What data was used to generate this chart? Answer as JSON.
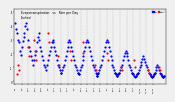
{
  "title": "Evapotranspiration   vs   Rain per Day",
  "subtitle": "(Inches)",
  "background_color": "#f0f0f0",
  "et_color": "#0000ff",
  "rain_color": "#ff0000",
  "black_color": "#000000",
  "ylim": [
    -0.02,
    0.52
  ],
  "num_days": 160,
  "vline_color": "#aaaaaa",
  "vline_style": "--",
  "legend_label_et": "ET",
  "legend_label_rain": "Rain",
  "dot_size": 2.5,
  "et_data": [
    0.42,
    0.38,
    0.35,
    0.3,
    0.28,
    0.22,
    0.19,
    0.25,
    0.29,
    0.32,
    0.35,
    0.4,
    0.42,
    0.38,
    0.3,
    0.25,
    0.22,
    0.18,
    0.15,
    0.12,
    0.15,
    0.19,
    0.22,
    0.28,
    0.32,
    0.35,
    0.3,
    0.25,
    0.22,
    0.18,
    0.15,
    0.12,
    0.1,
    0.08,
    0.12,
    0.15,
    0.19,
    0.22,
    0.25,
    0.28,
    0.3,
    0.28,
    0.25,
    0.22,
    0.19,
    0.15,
    0.12,
    0.1,
    0.08,
    0.06,
    0.08,
    0.1,
    0.12,
    0.15,
    0.18,
    0.22,
    0.25,
    0.28,
    0.3,
    0.28,
    0.25,
    0.22,
    0.18,
    0.15,
    0.12,
    0.1,
    0.08,
    0.06,
    0.05,
    0.08,
    0.1,
    0.12,
    0.15,
    0.18,
    0.22,
    0.25,
    0.28,
    0.3,
    0.28,
    0.25,
    0.22,
    0.18,
    0.15,
    0.12,
    0.1,
    0.08,
    0.06,
    0.05,
    0.04,
    0.06,
    0.08,
    0.1,
    0.12,
    0.15,
    0.18,
    0.22,
    0.25,
    0.28,
    0.3,
    0.28,
    0.25,
    0.22,
    0.18,
    0.15,
    0.12,
    0.1,
    0.08,
    0.06,
    0.05,
    0.04,
    0.05,
    0.06,
    0.08,
    0.1,
    0.12,
    0.15,
    0.18,
    0.2,
    0.22,
    0.2,
    0.18,
    0.15,
    0.12,
    0.1,
    0.08,
    0.06,
    0.05,
    0.04,
    0.03,
    0.04,
    0.05,
    0.06,
    0.08,
    0.1,
    0.12,
    0.14,
    0.16,
    0.18,
    0.16,
    0.14,
    0.12,
    0.1,
    0.08,
    0.06,
    0.05,
    0.04,
    0.03,
    0.04,
    0.05,
    0.06,
    0.08,
    0.1,
    0.12,
    0.1,
    0.08,
    0.06,
    0.05,
    0.04,
    0.03,
    0.04
  ],
  "rain_data": [
    0.0,
    0.0,
    0.05,
    0.12,
    0.08,
    0.0,
    0.0,
    0.0,
    0.0,
    0.0,
    0.0,
    0.0,
    0.0,
    0.0,
    0.25,
    0.18,
    0.0,
    0.0,
    0.0,
    0.0,
    0.3,
    0.22,
    0.15,
    0.0,
    0.0,
    0.0,
    0.0,
    0.0,
    0.0,
    0.0,
    0.0,
    0.0,
    0.0,
    0.0,
    0.0,
    0.35,
    0.28,
    0.0,
    0.0,
    0.0,
    0.0,
    0.0,
    0.0,
    0.0,
    0.0,
    0.0,
    0.18,
    0.12,
    0.0,
    0.0,
    0.0,
    0.0,
    0.0,
    0.0,
    0.0,
    0.0,
    0.0,
    0.0,
    0.0,
    0.22,
    0.15,
    0.0,
    0.0,
    0.0,
    0.0,
    0.0,
    0.0,
    0.0,
    0.0,
    0.0,
    0.0,
    0.0,
    0.28,
    0.2,
    0.0,
    0.0,
    0.0,
    0.0,
    0.0,
    0.0,
    0.0,
    0.0,
    0.0,
    0.0,
    0.0,
    0.12,
    0.08,
    0.0,
    0.0,
    0.0,
    0.0,
    0.0,
    0.0,
    0.0,
    0.0,
    0.0,
    0.0,
    0.0,
    0.2,
    0.15,
    0.0,
    0.0,
    0.0,
    0.0,
    0.0,
    0.0,
    0.0,
    0.0,
    0.0,
    0.0,
    0.0,
    0.0,
    0.0,
    0.1,
    0.08,
    0.0,
    0.0,
    0.0,
    0.0,
    0.0,
    0.0,
    0.0,
    0.0,
    0.0,
    0.0,
    0.0,
    0.0,
    0.15,
    0.1,
    0.0,
    0.0,
    0.0,
    0.0,
    0.0,
    0.0,
    0.0,
    0.0,
    0.0,
    0.0,
    0.0,
    0.0,
    0.0,
    0.08,
    0.06,
    0.0,
    0.0,
    0.0,
    0.0,
    0.0,
    0.0,
    0.0,
    0.0,
    0.0,
    0.0,
    0.1,
    0.08,
    0.0,
    0.0,
    0.0,
    0.0
  ],
  "x_tick_positions": [
    0,
    7,
    14,
    21,
    28,
    35,
    42,
    49,
    56,
    63,
    70,
    77,
    84,
    91,
    98,
    105,
    112,
    119,
    126,
    133,
    140,
    147
  ],
  "x_tick_labels": [
    "6/1",
    "6/8",
    "6/15",
    "6/22",
    "6/29",
    "7/6",
    "7/13",
    "7/20",
    "7/27",
    "8/3",
    "8/10",
    "8/17",
    "8/24",
    "8/31",
    "9/7",
    "9/14",
    "9/21",
    "9/28",
    "10/5",
    "10/12",
    "10/19",
    "10/26"
  ],
  "vline_positions": [
    7,
    14,
    21,
    28,
    35,
    42,
    49,
    56,
    63,
    70,
    77,
    84,
    91,
    98,
    105,
    112,
    119,
    126,
    133,
    140,
    147
  ],
  "y_tick_positions": [
    0.0,
    0.1,
    0.2,
    0.3,
    0.4,
    0.5
  ],
  "y_tick_labels": [
    "0",
    ".1",
    ".2",
    ".3",
    ".4",
    ".5"
  ]
}
